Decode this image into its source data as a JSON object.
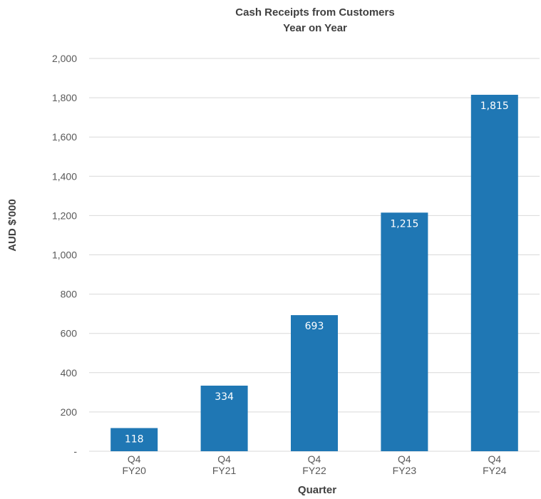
{
  "chart_data": {
    "type": "bar",
    "title": "Cash Receipts from Customers",
    "subtitle": "Year on Year",
    "xlabel": "Quarter",
    "ylabel": "AUD $'000",
    "categories": [
      [
        "Q4",
        "FY20"
      ],
      [
        "Q4",
        "FY21"
      ],
      [
        "Q4",
        "FY22"
      ],
      [
        "Q4",
        "FY23"
      ],
      [
        "Q4",
        "FY24"
      ]
    ],
    "values": [
      118,
      334,
      693,
      1215,
      1815
    ],
    "data_labels": [
      "118",
      "334",
      "693",
      "1,215",
      "1,815"
    ],
    "ylim": [
      0,
      2000
    ],
    "yticks": [
      0,
      200,
      400,
      600,
      800,
      1000,
      1200,
      1400,
      1600,
      1800,
      2000
    ],
    "ytick_labels": [
      "-",
      "200",
      "400",
      "600",
      "800",
      "1,000",
      "1,200",
      "1,400",
      "1,600",
      "1,800",
      "2,000"
    ],
    "grid": true,
    "legend": "none",
    "bar_color": "#1f77b4",
    "label_color": "#ffffff"
  }
}
